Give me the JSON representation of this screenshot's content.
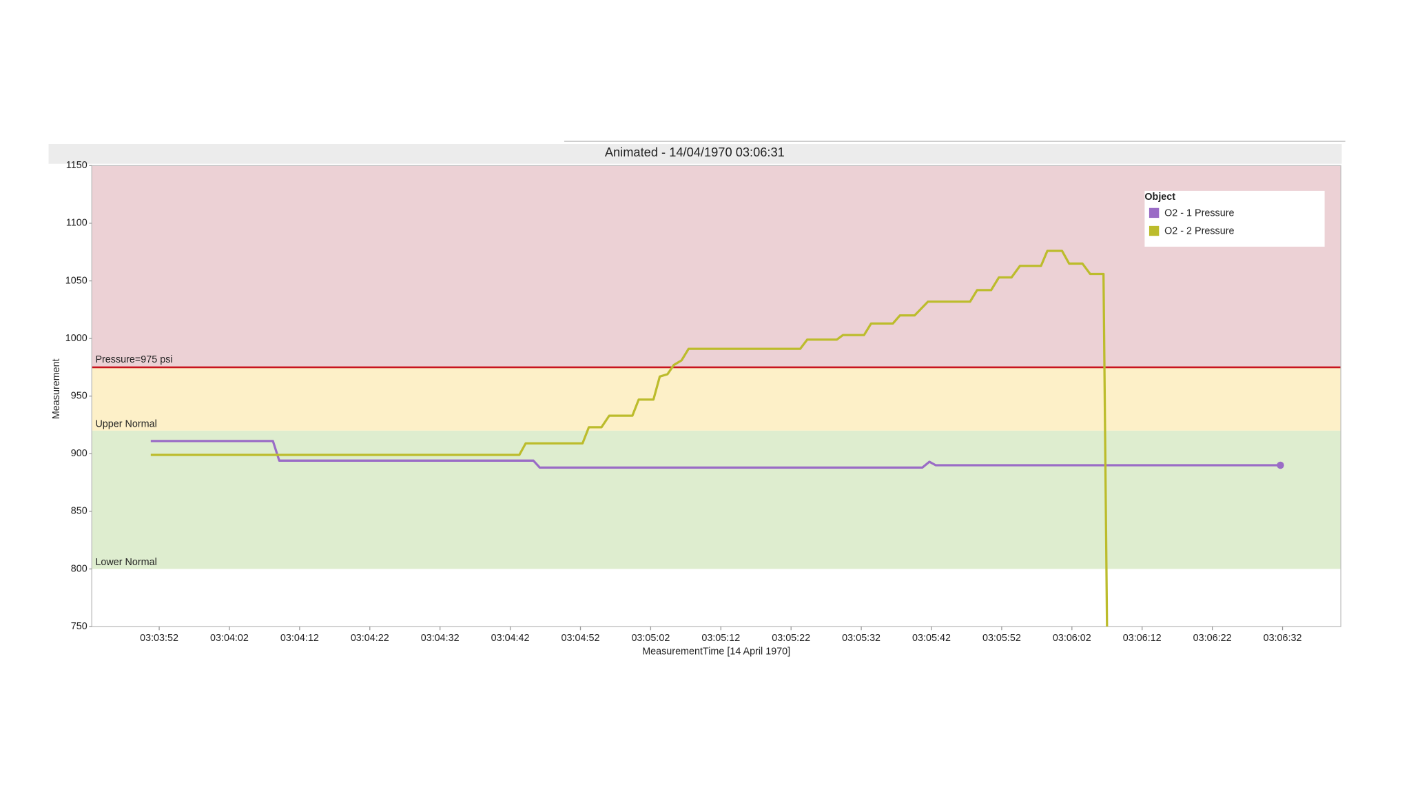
{
  "chart_data": {
    "type": "line",
    "title": "Animated - 14/04/1970 03:06:31",
    "x_label": "MeasurementTime [14 April 1970]",
    "y_label": "Measurement",
    "legend_title": "Object",
    "legend": "top-right",
    "grid": false,
    "xlim": [
      11022.4,
      11200.3
    ],
    "ylim": [
      750,
      1150
    ],
    "yticks": [
      750,
      800,
      850,
      900,
      950,
      1000,
      1050,
      1100,
      1150
    ],
    "xticks": [
      {
        "value": 11032,
        "label": "03:03:52"
      },
      {
        "value": 11042,
        "label": "03:04:02"
      },
      {
        "value": 11052,
        "label": "03:04:12"
      },
      {
        "value": 11062,
        "label": "03:04:22"
      },
      {
        "value": 11072,
        "label": "03:04:32"
      },
      {
        "value": 11082,
        "label": "03:04:42"
      },
      {
        "value": 11092,
        "label": "03:04:52"
      },
      {
        "value": 11102,
        "label": "03:05:02"
      },
      {
        "value": 11112,
        "label": "03:05:12"
      },
      {
        "value": 11122,
        "label": "03:05:22"
      },
      {
        "value": 11132,
        "label": "03:05:32"
      },
      {
        "value": 11142,
        "label": "03:05:42"
      },
      {
        "value": 11152,
        "label": "03:05:52"
      },
      {
        "value": 11162,
        "label": "03:06:02"
      },
      {
        "value": 11172,
        "label": "03:06:12"
      },
      {
        "value": 11182,
        "label": "03:06:22"
      },
      {
        "value": 11192,
        "label": "03:06:32"
      }
    ],
    "bands": [
      {
        "from": 975,
        "to": 1150,
        "color": "#ecd1d5"
      },
      {
        "from": 920,
        "to": 975,
        "color": "#fdf0c8"
      },
      {
        "from": 800,
        "to": 920,
        "color": "#deedcf"
      }
    ],
    "reference_line": {
      "value": 975,
      "label": "Pressure=975 psi",
      "color": "#c8141e"
    },
    "annotations": [
      {
        "value": 920,
        "label": "Upper Normal"
      },
      {
        "value": 800,
        "label": "Lower Normal"
      }
    ],
    "series": [
      {
        "name": "O2 - 1 Pressure",
        "color": "#9a6cc6",
        "end_marker": true,
        "x": [
          11030.8,
          11048.2,
          11049.1,
          11085.3,
          11086.2,
          11140.7,
          11141.7,
          11142.6,
          11191.7
        ],
        "values": [
          911,
          911,
          894,
          894,
          888,
          888,
          893,
          890,
          890
        ]
      },
      {
        "name": "O2 - 2 Pressure",
        "color": "#bcbc2c",
        "end_marker": false,
        "x": [
          11030.8,
          11083.3,
          11084.2,
          11092.3,
          11093.2,
          11095.0,
          11096.1,
          11099.4,
          11100.3,
          11102.4,
          11103.3,
          11104.4,
          11105.3,
          11106.4,
          11107.4,
          11123.3,
          11124.3,
          11128.5,
          11129.4,
          11132.4,
          11133.4,
          11136.5,
          11137.5,
          11139.6,
          11141.5,
          11147.5,
          11148.5,
          11150.5,
          11151.6,
          11153.4,
          11154.6,
          11157.6,
          11158.5,
          11160.6,
          11161.6,
          11163.5,
          11164.6,
          11166.5,
          11167.0
        ],
        "values": [
          899,
          899,
          909,
          909,
          923,
          923,
          933,
          933,
          947,
          947,
          967,
          969,
          977,
          981,
          991,
          991,
          999,
          999,
          1003,
          1003,
          1013,
          1013,
          1020,
          1020,
          1032,
          1032,
          1042,
          1042,
          1053,
          1053,
          1063,
          1063,
          1076,
          1076,
          1065,
          1065,
          1056,
          1056,
          750
        ]
      }
    ]
  }
}
